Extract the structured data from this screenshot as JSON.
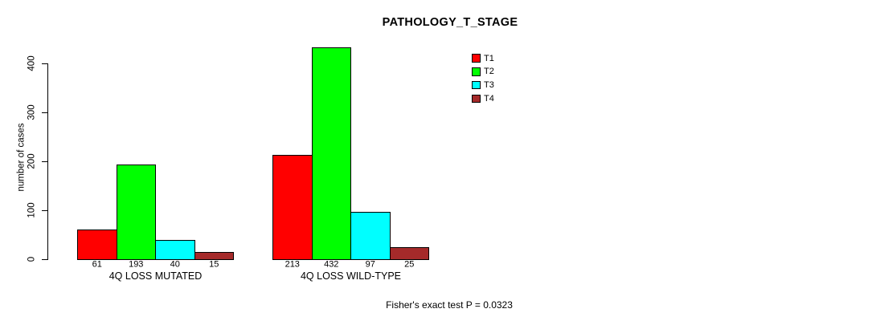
{
  "title": "PATHOLOGY_T_STAGE",
  "ylabel": "number of cases",
  "chart_data": {
    "type": "bar",
    "title": "PATHOLOGY_T_STAGE",
    "xlabel": "",
    "ylabel": "number of cases",
    "ylim": [
      0,
      400
    ],
    "yticks": [
      0,
      100,
      200,
      300,
      400
    ],
    "grid": false,
    "legend_position": "top-right",
    "categories": [
      "4Q LOSS MUTATED",
      "4Q LOSS WILD-TYPE"
    ],
    "series": [
      {
        "name": "T1",
        "color": "#ff0000",
        "values": [
          61,
          213
        ]
      },
      {
        "name": "T2",
        "color": "#00ff00",
        "values": [
          193,
          432
        ]
      },
      {
        "name": "T3",
        "color": "#00ffff",
        "values": [
          40,
          97
        ]
      },
      {
        "name": "T4",
        "color": "#a52a2a",
        "values": [
          15,
          25
        ]
      }
    ],
    "show_value_labels_under_bars": true,
    "annotation": "Fisher's exact test P = 0.0323"
  }
}
